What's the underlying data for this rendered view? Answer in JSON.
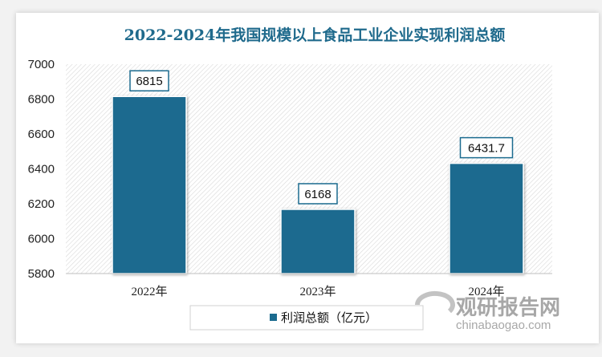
{
  "chart_data": {
    "type": "bar",
    "title": "2022-2024年我国规模以上食品工业企业实现利润总额",
    "categories": [
      "2022年",
      "2023年",
      "2024年"
    ],
    "series": [
      {
        "name": "利润总额（亿元）",
        "values": [
          6815,
          6168,
          6431.7
        ]
      }
    ],
    "data_labels": [
      "6815",
      "6168",
      "6431.7"
    ],
    "ylim": [
      5800,
      7000
    ],
    "yticks": [
      "5800",
      "6000",
      "6200",
      "6400",
      "6600",
      "6800",
      "7000"
    ],
    "legend_position": "bottom",
    "bar_color": "#1b6b8f",
    "plot_background": "hatched-light-gray"
  },
  "watermark": {
    "brand": "观研报告网",
    "url": "chinabaogao.com"
  }
}
